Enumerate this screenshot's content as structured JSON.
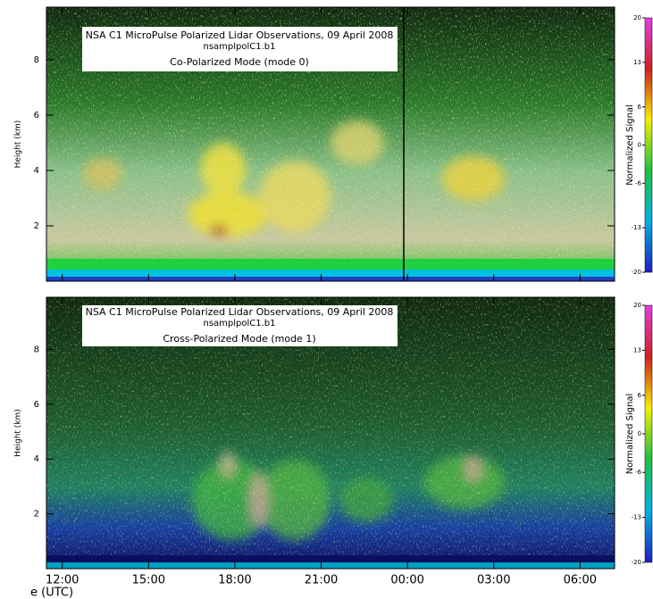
{
  "chart_data": [
    {
      "type": "heatmap",
      "title_lines": [
        "NSA C1 MicroPulse Polarized Lidar Observations, 09 April 2008",
        "nsamplpolC1.b1",
        "Co-Polarized Mode (mode 0)"
      ],
      "ylabel": "Height (km)",
      "xlim": [
        11.45,
        31.2
      ],
      "xticks": [
        12,
        15,
        18,
        21,
        24,
        27,
        30
      ],
      "show_xtick_labels": false,
      "ylim": [
        0,
        9.9
      ],
      "yticks": [
        2,
        4,
        6,
        8
      ],
      "colorbar": {
        "label": "Normalized Signal",
        "lim": [
          -20,
          20
        ],
        "ticks": [
          20,
          13,
          6,
          0,
          -6,
          -13,
          -20
        ],
        "colors": [
          "#2020c0",
          "#00b0e0",
          "#20c040",
          "#f0f000",
          "#d02020",
          "#e040e0"
        ]
      }
    },
    {
      "type": "heatmap",
      "title_lines": [
        "NSA C1 MicroPulse Polarized Lidar Observations, 09 April 2008",
        "nsamplpolC1.b1",
        "Cross-Polarized Mode (mode 1)"
      ],
      "ylabel": "Height (km)",
      "xlabel": "e (UTC)",
      "xlim": [
        11.45,
        31.2
      ],
      "xticks": [
        {
          "value": 12,
          "label": "12:00"
        },
        {
          "value": 15,
          "label": "15:00"
        },
        {
          "value": 18,
          "label": "18:00"
        },
        {
          "value": 21,
          "label": "21:00"
        },
        {
          "value": 24,
          "label": "00:00"
        },
        {
          "value": 27,
          "label": "03:00"
        },
        {
          "value": 30,
          "label": "06:00"
        }
      ],
      "show_xtick_labels": true,
      "ylim": [
        0,
        9.9
      ],
      "yticks": [
        2,
        4,
        6,
        8
      ],
      "colorbar": {
        "label": "Normalized Signal",
        "lim": [
          -20,
          20
        ],
        "ticks": [
          20,
          13,
          6,
          0,
          -6,
          -13,
          -20
        ],
        "colors": [
          "#2020c0",
          "#00b0e0",
          "#20c040",
          "#f0f000",
          "#d02020",
          "#e040e0"
        ]
      }
    }
  ]
}
